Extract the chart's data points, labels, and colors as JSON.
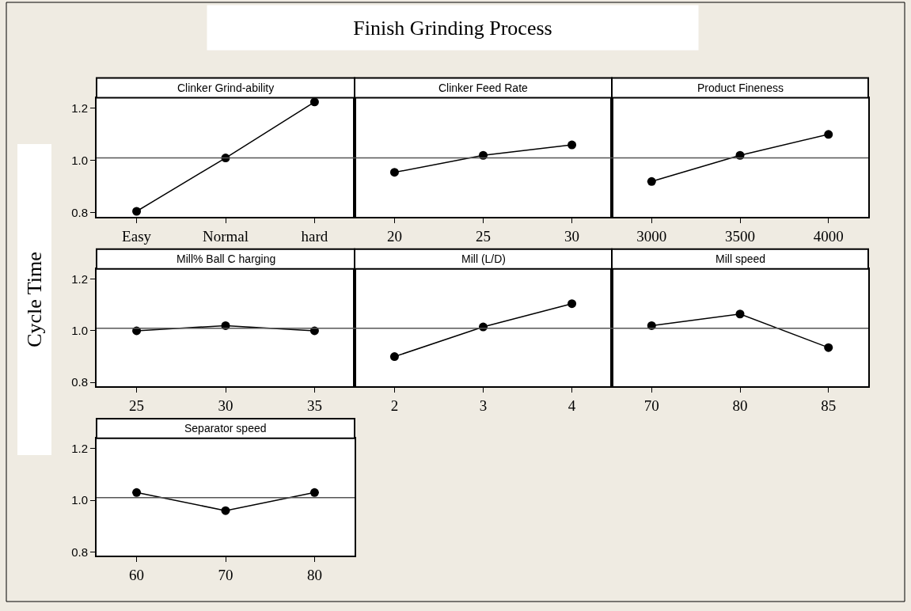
{
  "chart_data": [
    {
      "type": "line",
      "title": "Clinker Grind-ability",
      "annotations": [
        "Finish Grinding Process"
      ],
      "categories": [
        "Easy",
        "Normal",
        "hard"
      ],
      "values": [
        0.806,
        1.01,
        1.224
      ],
      "color": "#000000",
      "marker": "circle",
      "ylim": [
        0.785,
        1.24
      ],
      "yticks": [
        {
          "value": 0.8,
          "label": "0.8"
        },
        {
          "value": 1.0,
          "label": "1.0"
        },
        {
          "value": 1.2,
          "label": "1.2"
        }
      ],
      "ref_lines": [
        {
          "axis": "y",
          "value": 1.01,
          "color": "#555555"
        }
      ]
    },
    {
      "type": "line",
      "title": "Clinker Feed Rate",
      "categories": [
        "20",
        "25",
        "30"
      ],
      "values": [
        0.955,
        1.02,
        1.06
      ],
      "color": "#000000",
      "marker": "circle",
      "ylim": [
        0.785,
        1.24
      ],
      "yticks": [
        {
          "value": 0.8,
          "label": null
        },
        {
          "value": 1.0,
          "label": null
        },
        {
          "value": 1.2,
          "label": null
        }
      ],
      "tick_labels": "x",
      "ref_lines": [
        {
          "axis": "y",
          "value": 1.01,
          "color": "#555555"
        }
      ]
    },
    {
      "type": "line",
      "title": "Product Fineness",
      "categories": [
        "3000",
        "3500",
        "4000"
      ],
      "values": [
        0.92,
        1.02,
        1.1
      ],
      "color": "#000000",
      "marker": "circle",
      "ylim": [
        0.785,
        1.24
      ],
      "yticks": [
        {
          "value": 0.8,
          "label": null
        },
        {
          "value": 1.0,
          "label": null
        },
        {
          "value": 1.2,
          "label": null
        }
      ],
      "tick_labels": "x",
      "ref_lines": [
        {
          "axis": "y",
          "value": 1.01,
          "color": "#555555"
        }
      ]
    },
    {
      "type": "line",
      "title": "Mill% Ball C harging",
      "ylabel": "Cycle Time",
      "categories": [
        "25",
        "30",
        "35"
      ],
      "values": [
        1.0,
        1.02,
        1.0
      ],
      "color": "#000000",
      "marker": "circle",
      "ylim": [
        0.785,
        1.24
      ],
      "yticks": [
        {
          "value": 0.8,
          "label": "0.8"
        },
        {
          "value": 1.0,
          "label": "1.0"
        },
        {
          "value": 1.2,
          "label": "1.2"
        }
      ],
      "ref_lines": [
        {
          "axis": "y",
          "value": 1.01,
          "color": "#555555"
        }
      ]
    },
    {
      "type": "line",
      "title": "Mill (L/D)",
      "categories": [
        "2",
        "3",
        "4"
      ],
      "values": [
        0.9,
        1.015,
        1.105
      ],
      "color": "#000000",
      "marker": "circle",
      "ylim": [
        0.785,
        1.24
      ],
      "yticks": [
        {
          "value": 0.8,
          "label": null
        },
        {
          "value": 1.0,
          "label": null
        },
        {
          "value": 1.2,
          "label": null
        }
      ],
      "tick_labels": "x",
      "ref_lines": [
        {
          "axis": "y",
          "value": 1.01,
          "color": "#555555"
        }
      ]
    },
    {
      "type": "line",
      "title": "Mill speed",
      "categories": [
        "70",
        "80",
        "85"
      ],
      "values": [
        1.02,
        1.065,
        0.935
      ],
      "color": "#000000",
      "marker": "circle",
      "ylim": [
        0.785,
        1.24
      ],
      "yticks": [
        {
          "value": 0.8,
          "label": null
        },
        {
          "value": 1.0,
          "label": null
        },
        {
          "value": 1.2,
          "label": null
        }
      ],
      "tick_labels": "x",
      "ref_lines": [
        {
          "axis": "y",
          "value": 1.01,
          "color": "#555555"
        }
      ]
    },
    {
      "type": "line",
      "title": "Separator speed",
      "categories": [
        "60",
        "70",
        "80"
      ],
      "values": [
        1.03,
        0.96,
        1.03
      ],
      "color": "#000000",
      "marker": "circle",
      "ylim": [
        0.785,
        1.24
      ],
      "yticks": [
        {
          "value": 0.8,
          "label": "0.8"
        },
        {
          "value": 1.0,
          "label": "1.0"
        },
        {
          "value": 1.2,
          "label": "1.2"
        }
      ],
      "ref_lines": [
        {
          "axis": "y",
          "value": 1.01,
          "color": "#555555"
        }
      ]
    }
  ]
}
